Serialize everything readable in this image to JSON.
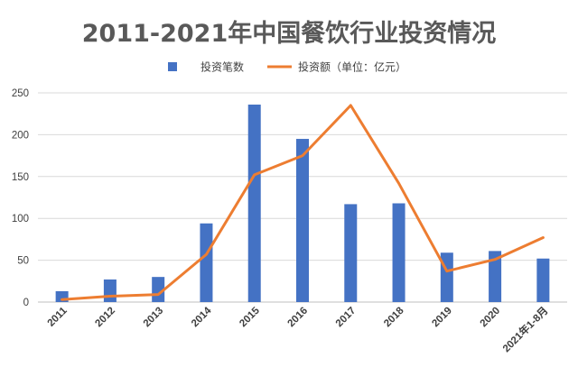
{
  "chart_data": {
    "type": "bar",
    "title": "2011-2021年中国餐饮行业投资情况",
    "categories": [
      "2011",
      "2012",
      "2013",
      "2014",
      "2015",
      "2016",
      "2017",
      "2018",
      "2019",
      "2020",
      "2021年1-8月"
    ],
    "series": [
      {
        "name": "投资笔数",
        "type": "bar",
        "color": "#4472c4",
        "values": [
          13,
          27,
          30,
          94,
          236,
          195,
          117,
          118,
          59,
          61,
          52
        ]
      },
      {
        "name": "投资额（单位：亿元）",
        "type": "line",
        "color": "#ed7d31",
        "values": [
          3,
          7,
          9,
          57,
          152,
          175,
          235,
          142,
          37,
          51,
          77
        ]
      }
    ],
    "ylim": [
      0,
      250
    ],
    "yticks": [
      "0",
      "50",
      "100",
      "150",
      "200",
      "250"
    ],
    "grid": true,
    "legend": "top-center"
  }
}
